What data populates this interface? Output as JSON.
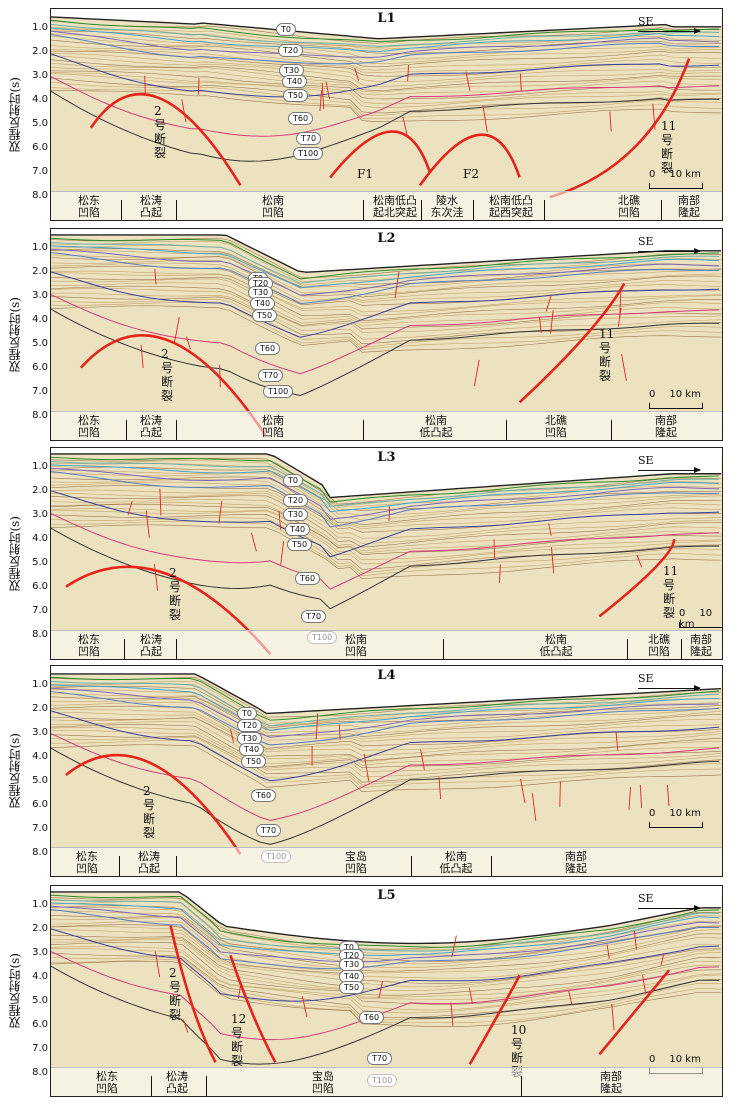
{
  "figure": {
    "y_axis_label": "双程反射时(s)",
    "y_ticks": [
      "1.0",
      "2.0",
      "3.0",
      "4.0",
      "5.0",
      "6.0",
      "7.0",
      "8.0"
    ],
    "direction_label": "SE",
    "scale_start": "0",
    "scale_end": "10 km",
    "fault_color": "#e8231a"
  },
  "panels": [
    {
      "title": "L1",
      "horizons": [
        "T0",
        "T20",
        "T30",
        "T40",
        "T50",
        "T60",
        "T70",
        "T100"
      ],
      "fault_labels": [
        {
          "name": "fault-2",
          "text": "2\n号\n断\n裂"
        },
        {
          "name": "fault-F1",
          "text": "F1"
        },
        {
          "name": "fault-F2",
          "text": "F2"
        },
        {
          "name": "fault-11",
          "text": "11\n号\n断\n裂"
        }
      ],
      "units": [
        {
          "text": "松东\n凹陷"
        },
        {
          "text": "松涛\n凸起"
        },
        {
          "text": "松南\n凹陷"
        },
        {
          "text": "松南低凸\n起北突起"
        },
        {
          "text": "陵水\n东次洼"
        },
        {
          "text": "松南低凸\n起西突起"
        },
        {
          "text": "北礁\n凹陷"
        },
        {
          "text": "南部\n隆起"
        }
      ]
    },
    {
      "title": "L2",
      "horizons": [
        "T0",
        "T20",
        "T30",
        "T40",
        "T50",
        "T60",
        "T70",
        "T100"
      ],
      "fault_labels": [
        {
          "name": "fault-2",
          "text": "2\n号\n断\n裂"
        },
        {
          "name": "fault-11",
          "text": "11\n号\n断\n裂"
        }
      ],
      "units": [
        {
          "text": "松东\n凹陷"
        },
        {
          "text": "松涛\n凸起"
        },
        {
          "text": "松南\n凹陷"
        },
        {
          "text": "松南\n低凸起"
        },
        {
          "text": "北礁\n凹陷"
        },
        {
          "text": "南部\n隆起"
        }
      ]
    },
    {
      "title": "L3",
      "horizons": [
        "T0",
        "T20",
        "T30",
        "T40",
        "T50",
        "T60",
        "T70",
        "T100"
      ],
      "fault_labels": [
        {
          "name": "fault-2",
          "text": "2\n号\n断\n裂"
        },
        {
          "name": "fault-11",
          "text": "11\n号\n断\n裂"
        }
      ],
      "units": [
        {
          "text": "松东\n凹陷"
        },
        {
          "text": "松涛\n凸起"
        },
        {
          "text": "松南\n凹陷"
        },
        {
          "text": "松南\n低凸起"
        },
        {
          "text": "北礁\n凹陷"
        },
        {
          "text": "南部\n隆起"
        }
      ]
    },
    {
      "title": "L4",
      "horizons": [
        "T0",
        "T20",
        "T30",
        "T40",
        "T50",
        "T60",
        "T70",
        "T100"
      ],
      "fault_labels": [
        {
          "name": "fault-2",
          "text": "2\n号\n断\n裂"
        }
      ],
      "units": [
        {
          "text": "松东\n凹陷"
        },
        {
          "text": "松涛\n凸起"
        },
        {
          "text": "宝岛\n凹陷"
        },
        {
          "text": "松南\n低凸起"
        },
        {
          "text": "南部\n隆起"
        }
      ]
    },
    {
      "title": "L5",
      "horizons": [
        "T0",
        "T20",
        "T30",
        "T40",
        "T50",
        "T60",
        "T70",
        "T100"
      ],
      "fault_labels": [
        {
          "name": "fault-2",
          "text": "2\n号\n断\n裂"
        },
        {
          "name": "fault-12",
          "text": "12\n号\n断\n裂"
        },
        {
          "name": "fault-10",
          "text": "10\n号\n断\n裂"
        }
      ],
      "units": [
        {
          "text": "松东\n凹陷"
        },
        {
          "text": "松涛\n凸起"
        },
        {
          "text": "宝岛\n凹陷"
        },
        {
          "text": "南部\n隆起"
        }
      ]
    }
  ]
}
